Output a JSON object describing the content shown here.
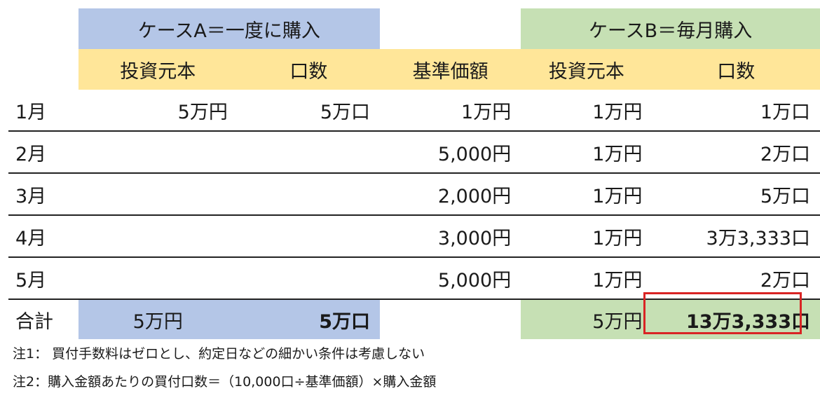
{
  "header": {
    "case_a": "ケースA＝一度に購入",
    "case_b": "ケースB＝毎月購入"
  },
  "subheader": {
    "a_principal": "投資元本",
    "a_units": "口数",
    "base_price": "基準価額",
    "b_principal": "投資元本",
    "b_units": "口数"
  },
  "rows": [
    {
      "month": "1月",
      "a_principal": "5万円",
      "a_units": "5万口",
      "base_price": "1万円",
      "b_principal": "1万円",
      "b_units": "1万口"
    },
    {
      "month": "2月",
      "a_principal": "",
      "a_units": "",
      "base_price": "5,000円",
      "b_principal": "1万円",
      "b_units": "2万口"
    },
    {
      "month": "3月",
      "a_principal": "",
      "a_units": "",
      "base_price": "2,000円",
      "b_principal": "1万円",
      "b_units": "5万口"
    },
    {
      "month": "4月",
      "a_principal": "",
      "a_units": "",
      "base_price": "3,000円",
      "b_principal": "1万円",
      "b_units": "3万3,333口"
    },
    {
      "month": "5月",
      "a_principal": "",
      "a_units": "",
      "base_price": "5,000円",
      "b_principal": "1万円",
      "b_units": "2万口"
    }
  ],
  "total": {
    "label": "合計",
    "a_principal": "5万円",
    "a_units": "5万口",
    "b_principal": "5万円",
    "b_units": "13万3,333口"
  },
  "notes": {
    "note1": "注1： 買付手数料はゼロとし、約定日などの細かい条件は考慮しない",
    "note2": "注2：購入金額あたりの買付口数＝（10,000口÷基準価額）×購入金額"
  },
  "colors": {
    "case_a": "#b4c6e7",
    "case_b": "#c6e0b4",
    "subheader": "#ffe699",
    "highlight_border": "#d92424"
  }
}
